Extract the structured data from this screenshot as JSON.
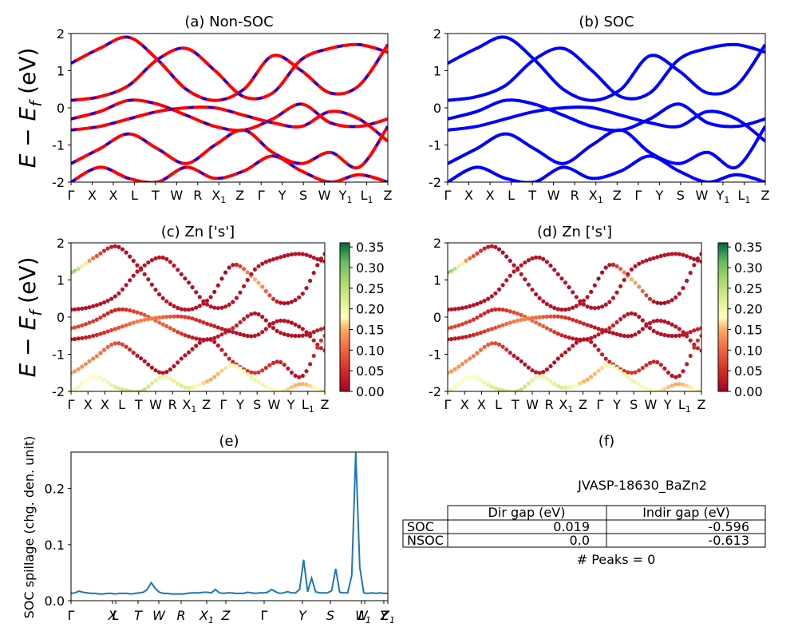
{
  "panels": {
    "a": {
      "title": "(a) Non-SOC"
    },
    "b": {
      "title": "(b) SOC"
    },
    "c": {
      "title": "(c)  Zn ['s']"
    },
    "d": {
      "title": "(d) Zn ['s']"
    },
    "e": {
      "title": "(e)"
    },
    "f": {
      "title": "(f)"
    }
  },
  "ylabel_energy": "E − E",
  "ylabel_energy_sub": "f",
  "ylabel_energy_unit": " (eV)",
  "ylabel_spillage": "SOC spillage (chg. den. unit)",
  "colorbar_ticks": [
    "0.35",
    "0.30",
    "0.25",
    "0.20",
    "0.15",
    "0.10",
    "0.05",
    "0.00"
  ],
  "table": {
    "title": "JVASP-18630_BaZn2",
    "headers": [
      "Dir gap (eV)",
      "Indir gap (eV)"
    ],
    "rows": [
      {
        "label": "SOC",
        "dir": "0.019",
        "indir": "-0.596"
      },
      {
        "label": "NSOC",
        "dir": "0.0",
        "indir": "-0.613"
      }
    ],
    "peaks": "# Peaks = 0"
  },
  "colors": {
    "nonsoc": "#ff0000",
    "nonsoc_dash": "#0000ff",
    "soc": "#0000ff",
    "spillage": "#1f77b4"
  },
  "chart_data": [
    {
      "type": "line",
      "title": "(a) Non-SOC",
      "ylabel": "E − E_f (eV)",
      "ylim": [
        -2,
        2
      ],
      "yticks": [
        -2,
        -1,
        0,
        1,
        2
      ],
      "kpath_labels": [
        "Γ",
        "X",
        "X",
        "L",
        "T",
        "W",
        "R",
        "X1",
        "Z",
        "Γ",
        "Y",
        "S",
        "W",
        "Y1",
        "L1",
        "Z"
      ],
      "series": [
        {
          "values": [
            1.2,
            1.6,
            1.9,
            1.3,
            0.5,
            0.2,
            0.5,
            1.4,
            1.0,
            0.4,
            0.6,
            1.7
          ]
        },
        {
          "values": [
            0.2,
            0.3,
            0.6,
            1.3,
            1.6,
            1.0,
            0.3,
            0.4,
            1.3,
            1.6,
            1.7,
            1.5
          ]
        },
        {
          "values": [
            -0.3,
            -0.1,
            0.2,
            0.1,
            -0.2,
            -0.5,
            -0.6,
            -0.3,
            0.1,
            -0.4,
            -0.5,
            -0.3
          ]
        },
        {
          "values": [
            -0.6,
            -0.5,
            -0.3,
            -0.1,
            0.0,
            0.0,
            -0.2,
            -0.4,
            -0.5,
            -0.1,
            -0.3,
            -0.9
          ]
        },
        {
          "values": [
            -1.5,
            -1.1,
            -0.7,
            -1.1,
            -1.5,
            -1.0,
            -0.6,
            -1.2,
            -1.5,
            -1.2,
            -1.6,
            -0.5
          ]
        },
        {
          "values": [
            -2.0,
            -1.6,
            -1.9,
            -2.0,
            -1.6,
            -1.9,
            -1.7,
            -1.3,
            -1.7,
            -2.0,
            -1.8,
            -2.0
          ]
        }
      ]
    },
    {
      "type": "line",
      "title": "(b) SOC",
      "ylim": [
        -2,
        2
      ],
      "yticks": [
        -2,
        -1,
        0,
        1,
        2
      ],
      "kpath_labels": [
        "Γ",
        "X",
        "X",
        "L",
        "T",
        "W",
        "R",
        "X1",
        "Z",
        "Γ",
        "Y",
        "S",
        "W",
        "Y1",
        "L1",
        "Z"
      ],
      "series": [
        {
          "values": [
            1.2,
            1.6,
            1.9,
            1.3,
            0.5,
            0.2,
            0.5,
            1.4,
            1.0,
            0.4,
            0.6,
            1.7
          ]
        },
        {
          "values": [
            0.2,
            0.3,
            0.6,
            1.3,
            1.6,
            1.0,
            0.3,
            0.4,
            1.3,
            1.6,
            1.7,
            1.5
          ]
        },
        {
          "values": [
            -0.3,
            -0.1,
            0.2,
            0.1,
            -0.2,
            -0.5,
            -0.6,
            -0.3,
            0.1,
            -0.4,
            -0.5,
            -0.3
          ]
        },
        {
          "values": [
            -0.6,
            -0.5,
            -0.3,
            -0.1,
            0.0,
            0.0,
            -0.2,
            -0.4,
            -0.5,
            -0.1,
            -0.3,
            -0.9
          ]
        },
        {
          "values": [
            -1.5,
            -1.1,
            -0.7,
            -1.1,
            -1.5,
            -1.0,
            -0.6,
            -1.2,
            -1.5,
            -1.2,
            -1.6,
            -0.5
          ]
        },
        {
          "values": [
            -2.0,
            -1.6,
            -1.9,
            -2.0,
            -1.6,
            -1.9,
            -1.7,
            -1.3,
            -1.7,
            -2.0,
            -1.8,
            -2.0
          ]
        }
      ]
    },
    {
      "type": "scatter",
      "title": "(c)  Zn ['s']",
      "ylim": [
        -2,
        2
      ],
      "colorbar_range": [
        0.0,
        0.36
      ],
      "kpath_labels": [
        "Γ",
        "X",
        "X",
        "L",
        "T",
        "W",
        "R",
        "X1",
        "Z",
        "Γ",
        "Y",
        "S",
        "W",
        "Y",
        "L1",
        "Z"
      ],
      "series": [
        {
          "values": [
            1.2,
            1.6,
            1.9,
            1.3,
            0.5,
            0.2,
            0.5,
            1.4,
            1.0,
            0.4,
            0.6,
            1.7
          ],
          "weights": [
            0.3,
            0.1,
            0.02,
            0.02,
            0.02,
            0.02,
            0.02,
            0.02,
            0.15,
            0.02,
            0.02,
            0.02
          ]
        },
        {
          "values": [
            0.2,
            0.3,
            0.6,
            1.3,
            1.6,
            1.0,
            0.3,
            0.4,
            1.3,
            1.6,
            1.7,
            1.5
          ],
          "weights": [
            0.02,
            0.02,
            0.02,
            0.02,
            0.02,
            0.02,
            0.02,
            0.02,
            0.02,
            0.02,
            0.02,
            0.02
          ]
        },
        {
          "values": [
            -0.3,
            -0.1,
            0.2,
            0.1,
            -0.2,
            -0.5,
            -0.6,
            -0.3,
            0.1,
            -0.4,
            -0.5,
            -0.3
          ],
          "weights": [
            0.08,
            0.06,
            0.04,
            0.08,
            0.1,
            0.04,
            0.02,
            0.04,
            0.02,
            0.02,
            0.02,
            0.04
          ]
        },
        {
          "values": [
            -0.6,
            -0.5,
            -0.3,
            -0.1,
            0.0,
            0.0,
            -0.2,
            -0.4,
            -0.5,
            -0.1,
            -0.3,
            -0.9
          ],
          "weights": [
            0.02,
            0.04,
            0.08,
            0.12,
            0.1,
            0.06,
            0.04,
            0.02,
            0.02,
            0.02,
            0.02,
            0.04
          ]
        },
        {
          "values": [
            -1.5,
            -1.1,
            -0.7,
            -1.1,
            -1.5,
            -1.0,
            -0.6,
            -1.2,
            -1.5,
            -1.2,
            -1.6,
            -0.5
          ],
          "weights": [
            0.14,
            0.12,
            0.08,
            0.02,
            0.02,
            0.02,
            0.02,
            0.04,
            0.06,
            0.04,
            0.02,
            0.06
          ]
        },
        {
          "values": [
            -2.0,
            -1.6,
            -1.9,
            -2.0,
            -1.6,
            -1.9,
            -1.7,
            -1.3,
            -1.7,
            -2.0,
            -1.8,
            -2.0
          ],
          "weights": [
            0.2,
            0.18,
            0.22,
            0.25,
            0.2,
            0.22,
            0.15,
            0.18,
            0.2,
            0.18,
            0.15,
            0.2
          ]
        }
      ]
    },
    {
      "type": "scatter",
      "title": "(d) Zn ['s']",
      "ylim": [
        -2,
        2
      ],
      "colorbar_range": [
        0.0,
        0.36
      ],
      "kpath_labels": [
        "Γ",
        "X",
        "X",
        "L",
        "T",
        "W",
        "R",
        "X1",
        "Z",
        "Γ",
        "Y",
        "S",
        "W",
        "Y",
        "L1",
        "Z"
      ],
      "series": [
        {
          "values": [
            1.2,
            1.6,
            1.9,
            1.3,
            0.5,
            0.2,
            0.5,
            1.4,
            1.0,
            0.4,
            0.6,
            1.7
          ],
          "weights": [
            0.3,
            0.1,
            0.02,
            0.02,
            0.02,
            0.02,
            0.02,
            0.02,
            0.15,
            0.02,
            0.02,
            0.02
          ]
        },
        {
          "values": [
            0.2,
            0.3,
            0.6,
            1.3,
            1.6,
            1.0,
            0.3,
            0.4,
            1.3,
            1.6,
            1.7,
            1.5
          ],
          "weights": [
            0.02,
            0.02,
            0.02,
            0.02,
            0.02,
            0.02,
            0.02,
            0.02,
            0.02,
            0.02,
            0.02,
            0.02
          ]
        },
        {
          "values": [
            -0.3,
            -0.1,
            0.2,
            0.1,
            -0.2,
            -0.5,
            -0.6,
            -0.3,
            0.1,
            -0.4,
            -0.5,
            -0.3
          ],
          "weights": [
            0.08,
            0.06,
            0.04,
            0.08,
            0.1,
            0.04,
            0.02,
            0.04,
            0.02,
            0.02,
            0.02,
            0.04
          ]
        },
        {
          "values": [
            -0.6,
            -0.5,
            -0.3,
            -0.1,
            0.0,
            0.0,
            -0.2,
            -0.4,
            -0.5,
            -0.1,
            -0.3,
            -0.9
          ],
          "weights": [
            0.02,
            0.04,
            0.08,
            0.12,
            0.1,
            0.06,
            0.04,
            0.02,
            0.02,
            0.02,
            0.02,
            0.04
          ]
        },
        {
          "values": [
            -1.5,
            -1.1,
            -0.7,
            -1.1,
            -1.5,
            -1.0,
            -0.6,
            -1.2,
            -1.5,
            -1.2,
            -1.6,
            -0.5
          ],
          "weights": [
            0.14,
            0.12,
            0.08,
            0.02,
            0.02,
            0.02,
            0.02,
            0.04,
            0.06,
            0.04,
            0.02,
            0.06
          ]
        },
        {
          "values": [
            -2.0,
            -1.6,
            -1.9,
            -2.0,
            -1.6,
            -1.9,
            -1.7,
            -1.3,
            -1.7,
            -2.0,
            -1.8,
            -2.0
          ],
          "weights": [
            0.2,
            0.18,
            0.22,
            0.25,
            0.2,
            0.22,
            0.15,
            0.18,
            0.2,
            0.18,
            0.15,
            0.2
          ]
        }
      ]
    },
    {
      "type": "line",
      "title": "(e)",
      "ylabel": "SOC spillage (chg. den. unit)",
      "ylim": [
        0,
        0.265
      ],
      "yticks": [
        0.0,
        0.1,
        0.2
      ],
      "kpath_labels": [
        "Γ",
        "X",
        "L",
        "T",
        "W",
        "R",
        "X1",
        "Z",
        "Γ",
        "Y",
        "S",
        "W",
        "L1",
        "Y",
        "Z1"
      ],
      "x": [
        0,
        1,
        2,
        3,
        4,
        5,
        6,
        7,
        8,
        9,
        10,
        11,
        12,
        13,
        14,
        15,
        16,
        17,
        18,
        19,
        20,
        21,
        22,
        23,
        24,
        25,
        26,
        27,
        28,
        29,
        30,
        31,
        32,
        33,
        34,
        35,
        36,
        37,
        38,
        39,
        40,
        41,
        42,
        43,
        44,
        45,
        46,
        47,
        48,
        49,
        50,
        51,
        52,
        53,
        54,
        55,
        56,
        57,
        58,
        59,
        60,
        61,
        62,
        63,
        64,
        65,
        66,
        67,
        68,
        69,
        70,
        71,
        72,
        73,
        74,
        75,
        76,
        77,
        78,
        79
      ],
      "values": [
        0.013,
        0.014,
        0.017,
        0.015,
        0.014,
        0.013,
        0.013,
        0.012,
        0.012,
        0.013,
        0.013,
        0.012,
        0.013,
        0.013,
        0.013,
        0.012,
        0.013,
        0.014,
        0.015,
        0.02,
        0.032,
        0.022,
        0.015,
        0.013,
        0.013,
        0.012,
        0.012,
        0.012,
        0.012,
        0.013,
        0.014,
        0.014,
        0.014,
        0.015,
        0.015,
        0.014,
        0.02,
        0.014,
        0.013,
        0.014,
        0.014,
        0.013,
        0.013,
        0.013,
        0.015,
        0.014,
        0.013,
        0.014,
        0.014,
        0.015,
        0.02,
        0.016,
        0.013,
        0.014,
        0.016,
        0.014,
        0.014,
        0.02,
        0.073,
        0.016,
        0.04,
        0.016,
        0.014,
        0.014,
        0.014,
        0.018,
        0.057,
        0.015,
        0.014,
        0.014,
        0.045,
        0.265,
        0.06,
        0.014,
        0.013,
        0.014,
        0.013,
        0.014,
        0.013,
        0.013
      ]
    },
    {
      "type": "table",
      "title": "JVASP-18630_BaZn2",
      "columns": [
        "",
        "Dir gap (eV)",
        "Indir gap (eV)"
      ],
      "rows": [
        [
          "SOC",
          "0.019",
          "-0.596"
        ],
        [
          "NSOC",
          "0.0",
          "-0.613"
        ]
      ]
    }
  ]
}
